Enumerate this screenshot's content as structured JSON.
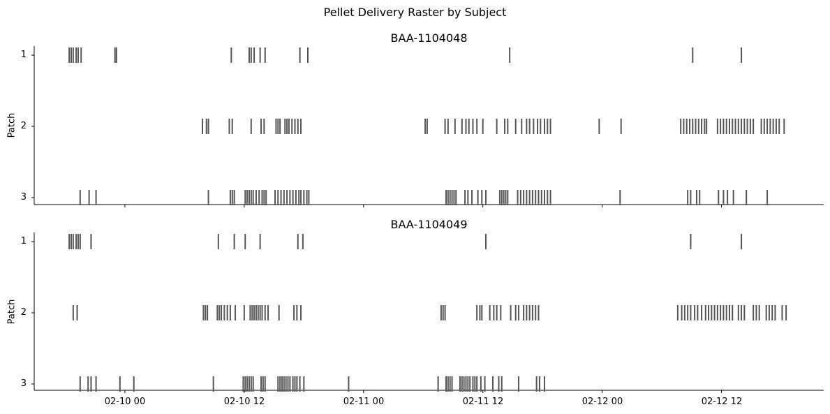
{
  "chart_data": {
    "type": "raster",
    "suptitle": "Pellet Delivery Raster by Subject",
    "time_axis": {
      "unit": "hours since 02-10 00:00",
      "xlim": [
        -9.12,
        70.28
      ],
      "ticks": [
        {
          "value": 0,
          "label": "02-10 00"
        },
        {
          "value": 12,
          "label": "02-10 12"
        },
        {
          "value": 24,
          "label": "02-11 00"
        },
        {
          "value": 36,
          "label": "02-11 12"
        },
        {
          "value": 48,
          "label": "02-12 00"
        },
        {
          "value": 60,
          "label": "02-12 12"
        }
      ]
    },
    "ylabel": "Patch",
    "patch_labels": [
      "1",
      "2",
      "3"
    ],
    "bar_color": "#555555",
    "panels": [
      {
        "title": "BAA-1104048",
        "patches": [
          [
            -5.6,
            -5.4,
            -5.2,
            -4.9,
            -4.7,
            -4.4,
            -1.0,
            -0.85,
            10.7,
            12.5,
            12.7,
            13.0,
            13.6,
            14.1,
            17.6,
            18.4,
            38.7,
            57.1,
            62.0
          ],
          [
            7.8,
            8.2,
            8.4,
            10.5,
            10.8,
            12.7,
            13.7,
            14.0,
            15.2,
            15.4,
            15.6,
            16.1,
            16.3,
            16.5,
            16.8,
            17.1,
            17.4,
            17.7,
            30.2,
            30.4,
            32.2,
            32.5,
            33.2,
            33.9,
            34.3,
            34.6,
            35.0,
            35.4,
            36.0,
            37.4,
            38.2,
            38.5,
            39.3,
            39.9,
            40.4,
            40.7,
            41.1,
            41.5,
            41.8,
            42.2,
            42.5,
            42.8,
            47.7,
            49.9,
            55.9,
            56.2,
            56.5,
            56.8,
            57.1,
            57.4,
            57.7,
            58.0,
            58.3,
            58.5,
            59.6,
            59.9,
            60.2,
            60.5,
            60.8,
            61.1,
            61.4,
            61.7,
            62.0,
            62.3,
            62.6,
            62.9,
            63.2,
            64.0,
            64.3,
            64.6,
            64.9,
            65.2,
            65.5,
            65.8,
            66.3
          ],
          [
            -4.5,
            -3.6,
            -2.9,
            8.4,
            10.6,
            10.8,
            11.0,
            12.1,
            12.3,
            12.5,
            12.7,
            12.9,
            13.2,
            13.5,
            13.8,
            14.0,
            14.2,
            15.1,
            15.4,
            15.7,
            16.0,
            16.3,
            16.6,
            16.9,
            17.2,
            17.5,
            17.7,
            18.0,
            18.3,
            18.5,
            32.3,
            32.5,
            32.7,
            32.9,
            33.1,
            33.3,
            34.2,
            34.5,
            34.9,
            35.5,
            35.9,
            36.3,
            37.7,
            37.9,
            38.1,
            38.3,
            38.5,
            39.5,
            39.8,
            40.1,
            40.4,
            40.7,
            41.0,
            41.3,
            41.6,
            41.9,
            42.2,
            42.5,
            42.8,
            49.8,
            56.6,
            56.9,
            57.5,
            57.8,
            59.7,
            60.2,
            60.6,
            61.2,
            62.5,
            64.6
          ]
        ]
      },
      {
        "title": "BAA-1104049",
        "patches": [
          [
            -5.6,
            -5.4,
            -5.2,
            -4.9,
            -4.7,
            -4.5,
            -3.4,
            9.4,
            11.0,
            12.1,
            13.6,
            17.4,
            17.9,
            36.3,
            56.9,
            62.0
          ],
          [
            -5.2,
            -4.8,
            7.9,
            8.1,
            8.3,
            9.3,
            9.5,
            9.7,
            10.0,
            10.3,
            10.6,
            11.1,
            12.0,
            12.6,
            12.8,
            13.0,
            13.2,
            13.4,
            13.6,
            13.8,
            14.1,
            14.4,
            15.5,
            17.0,
            17.3,
            17.7,
            31.8,
            32.0,
            32.2,
            35.4,
            35.7,
            35.9,
            36.7,
            37.1,
            37.4,
            37.8,
            38.8,
            39.3,
            39.6,
            40.1,
            40.4,
            40.7,
            41.0,
            41.3,
            41.6,
            55.6,
            56.0,
            56.3,
            56.6,
            56.9,
            57.3,
            57.6,
            58.0,
            58.4,
            58.7,
            59.0,
            59.3,
            59.6,
            59.9,
            60.2,
            60.5,
            60.8,
            61.1,
            61.7,
            62.0,
            62.3,
            63.2,
            63.5,
            63.8,
            64.5,
            64.8,
            65.1,
            65.4,
            66.1,
            66.5
          ],
          [
            -4.5,
            -3.7,
            -3.4,
            -2.9,
            -0.5,
            0.9,
            8.9,
            11.9,
            12.1,
            12.3,
            12.5,
            12.7,
            12.9,
            13.7,
            13.9,
            14.1,
            15.4,
            15.6,
            15.8,
            16.0,
            16.2,
            16.4,
            16.6,
            16.9,
            17.1,
            17.3,
            17.6,
            18.0,
            22.5,
            31.5,
            32.3,
            32.5,
            32.7,
            32.9,
            33.7,
            33.9,
            34.1,
            34.3,
            34.5,
            34.7,
            35.0,
            35.2,
            35.4,
            35.8,
            36.2,
            37.0,
            37.6,
            37.9,
            39.6,
            41.4,
            41.7,
            42.2
          ]
        ]
      }
    ]
  }
}
